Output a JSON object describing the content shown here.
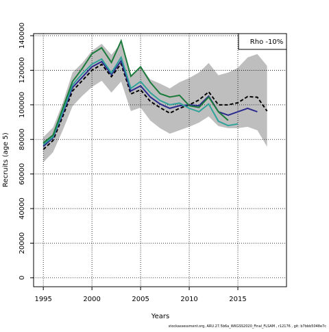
{
  "chart_data": {
    "type": "line",
    "x_label": "Years",
    "y_label": "Recruits (age 5)",
    "legend_text": "Rho -10%",
    "legend_position": "top-right",
    "footnote": "stockassessment.org, ARU.27.5b6a_WKGSS2020_Final_FLSAM ,  r12176 ,  git: b7bbb5048e7c",
    "x": [
      1995,
      1996,
      1997,
      1998,
      1999,
      2000,
      2001,
      2002,
      2003,
      2004,
      2005,
      2006,
      2007,
      2008,
      2009,
      2010,
      2011,
      2012,
      2013,
      2014,
      2015,
      2016,
      2017,
      2018
    ],
    "band": {
      "color": "#bebebe",
      "upper": [
        81300,
        86900,
        101200,
        118700,
        124200,
        131300,
        135300,
        129000,
        135700,
        116300,
        122200,
        114700,
        112300,
        109500,
        113100,
        115500,
        118700,
        124200,
        117100,
        118700,
        121400,
        127400,
        129400,
        122600
      ],
      "lower": [
        66700,
        72600,
        85300,
        99200,
        105200,
        110300,
        113900,
        107100,
        113500,
        96400,
        98400,
        90900,
        86500,
        83300,
        85300,
        87300,
        89700,
        93300,
        87700,
        86500,
        86500,
        87300,
        85300,
        75800
      ]
    },
    "series": [
      {
        "color": "#000000",
        "dashed": true,
        "values": [
          74200,
          79400,
          93300,
          108000,
          114000,
          120000,
          123400,
          116300,
          123800,
          106300,
          108700,
          102000,
          98400,
          95200,
          98000,
          100000,
          102800,
          107500,
          100000,
          100000,
          101200,
          104800,
          104400,
          96400
        ]
      },
      {
        "color": "#2a2a8e",
        "values": [
          76000,
          81000,
          95000,
          110000,
          116000,
          122000,
          125000,
          117500,
          125500,
          108000,
          111000,
          104500,
          100500,
          98000,
          99500,
          100000,
          99500,
          105000,
          96000,
          94000,
          96000,
          98000,
          96000,
          null
        ]
      },
      {
        "color": "#2fa39a",
        "values": [
          77000,
          81500,
          96000,
          111500,
          118000,
          123500,
          126500,
          118500,
          127500,
          109500,
          113500,
          107000,
          102500,
          100000,
          101000,
          98000,
          96000,
          100500,
          90500,
          88000,
          89000,
          null,
          null,
          null
        ]
      },
      {
        "color": "#1a7a3a",
        "values": [
          78000,
          82500,
          98000,
          113500,
          121000,
          129500,
          133000,
          124500,
          137000,
          116500,
          122000,
          113000,
          106500,
          104500,
          105500,
          99500,
          98500,
          104500,
          96000,
          91000,
          null,
          null,
          null,
          null
        ]
      }
    ],
    "xlim": [
      1994,
      2020
    ],
    "ylim": [
      -5200,
      141200
    ],
    "xticks": [
      1995,
      2000,
      2005,
      2010,
      2015
    ],
    "yticks": [
      0,
      20000,
      40000,
      60000,
      80000,
      100000,
      120000,
      140000
    ],
    "grid": true
  }
}
